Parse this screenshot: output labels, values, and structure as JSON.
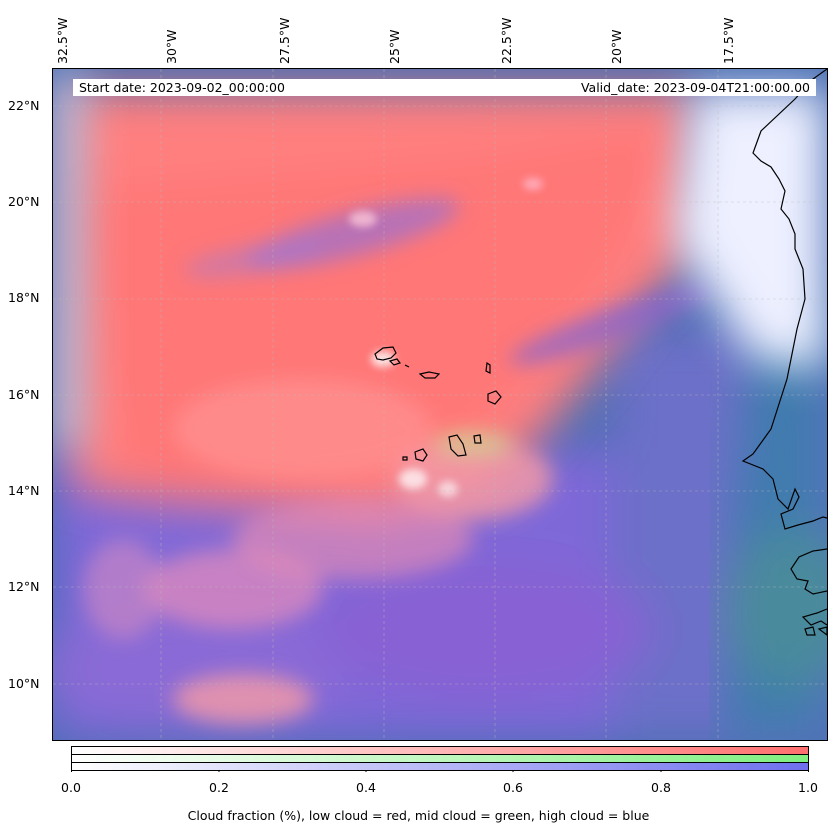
{
  "map": {
    "longitude_labels": [
      "32.5°W",
      "30°W",
      "27.5°W",
      "25°W",
      "22.5°W",
      "20°W",
      "17.5°W"
    ],
    "latitude_labels": [
      "22°N",
      "20°N",
      "18°N",
      "16°N",
      "14°N",
      "12°N",
      "10°N"
    ],
    "start_date": "Start date: 2023-09-02_00:00:00",
    "valid_date": "Valid_date: 2023-09-04T21:00:00.00",
    "colors": {
      "low_cloud": "#ff7a7a",
      "mid_cloud": "#8fef8f",
      "high_cloud": "#7a6fe0",
      "clear_ocean": "#3d6fb0",
      "coastline": "#000000"
    }
  },
  "colorbar": {
    "ticks": [
      "0.0",
      "0.2",
      "0.4",
      "0.6",
      "0.8",
      "1.0"
    ],
    "caption": "Cloud fraction (%), low cloud = red, mid cloud = green, high cloud = blue",
    "range": [
      0.0,
      1.0
    ]
  }
}
